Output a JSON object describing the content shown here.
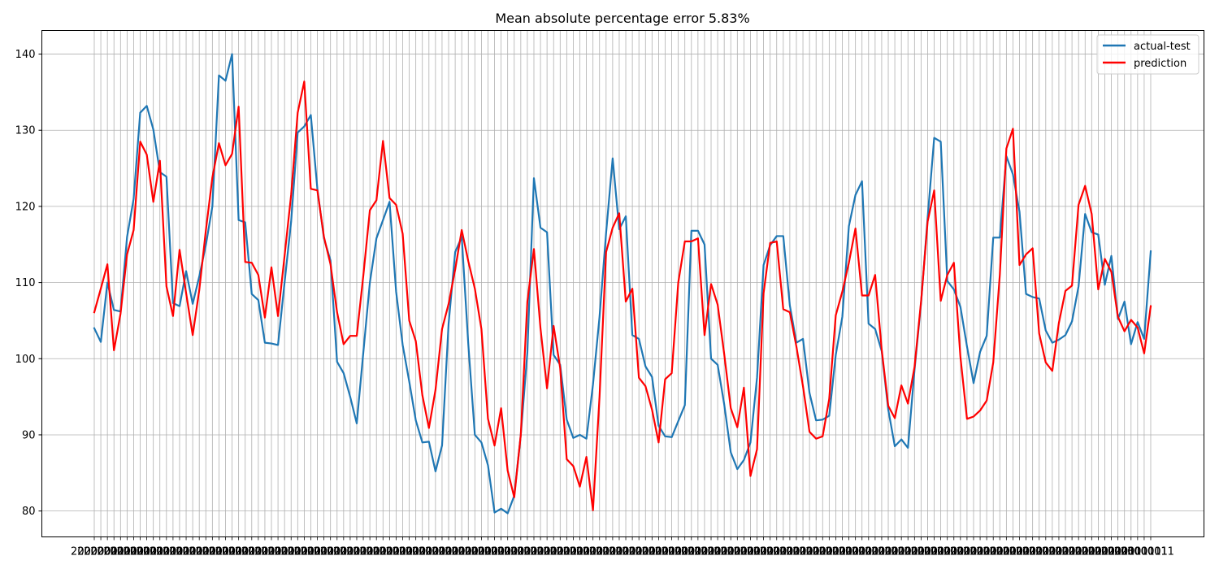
{
  "chart_data": {
    "type": "line",
    "title": "Mean absolute percentage error 5.83%",
    "xlabel": "",
    "ylabel": "",
    "ylim": [
      76.6,
      143.1
    ],
    "y_ticks": [
      80,
      90,
      100,
      110,
      120,
      130,
      140
    ],
    "x_tick_labels_note": "",
    "x_first_label": "2000001",
    "x_last_label": "3000011",
    "grid": true,
    "legend_position": "top-right",
    "series": [
      {
        "name": "actual-test",
        "color": "#1f77b4",
        "values": [
          104.0,
          102.2,
          110.0,
          106.4,
          106.2,
          116.0,
          121.0,
          132.3,
          133.2,
          130.1,
          124.5,
          123.9,
          107.3,
          106.9,
          111.5,
          107.2,
          110.8,
          114.9,
          120.0,
          137.2,
          136.5,
          140.0,
          118.2,
          117.9,
          108.5,
          107.7,
          102.1,
          102.0,
          101.8,
          110.0,
          118.0,
          129.7,
          130.5,
          132.0,
          122.3,
          115.8,
          112.9,
          99.6,
          98.1,
          95.0,
          91.5,
          100.8,
          110.0,
          115.8,
          118.2,
          120.6,
          108.8,
          101.8,
          97.0,
          91.9,
          89.0,
          89.1,
          85.2,
          88.6,
          104.6,
          114.0,
          116.0,
          101.9,
          90.0,
          89.0,
          86.0,
          79.8,
          80.3,
          79.7,
          82.0,
          90.0,
          100.8,
          123.7,
          117.2,
          116.6,
          100.5,
          99.2,
          92.0,
          89.6,
          90.0,
          89.5,
          96.6,
          105.5,
          116.5,
          126.3,
          117.0,
          118.7,
          103.1,
          102.6,
          99.0,
          97.6,
          91.2,
          89.8,
          89.7,
          91.8,
          93.9,
          116.8,
          116.8,
          115.0,
          100.0,
          99.2,
          94.0,
          87.7,
          85.5,
          86.7,
          89.0,
          97.5,
          112.3,
          114.9,
          116.1,
          116.1,
          107.0,
          102.1,
          102.6,
          95.5,
          91.9,
          92.0,
          92.5,
          100.5,
          105.5,
          117.4,
          121.5,
          123.3,
          104.6,
          103.9,
          101.0,
          93.3,
          88.5,
          89.4,
          88.3,
          98.5,
          107.3,
          118.5,
          129.0,
          128.5,
          110.2,
          109.1,
          106.8,
          101.6,
          96.8,
          100.9,
          103.0,
          115.9,
          115.9,
          126.6,
          124.2,
          119.3,
          108.5,
          108.1,
          107.9,
          103.7,
          102.1,
          102.5,
          103.1,
          104.9,
          109.5,
          119.0,
          116.6,
          116.3,
          109.7,
          113.5,
          105.2,
          107.5,
          101.9,
          104.8,
          102.6,
          114.1
        ]
      },
      {
        "name": "prediction",
        "color": "#ff0000",
        "values": [
          106.1,
          109.2,
          112.4,
          101.1,
          105.9,
          113.7,
          116.9,
          128.5,
          126.8,
          120.6,
          126.0,
          109.5,
          105.6,
          114.3,
          108.6,
          103.1,
          109.0,
          116.8,
          123.8,
          128.3,
          125.4,
          126.9,
          133.1,
          112.7,
          112.6,
          111.0,
          105.4,
          112.0,
          105.6,
          113.5,
          121.5,
          132.3,
          136.4,
          122.3,
          122.1,
          116.0,
          112.4,
          106.1,
          101.9,
          103.0,
          103.0,
          110.9,
          119.5,
          120.8,
          128.6,
          121.1,
          120.2,
          116.4,
          105.0,
          102.3,
          95.2,
          90.9,
          95.9,
          103.9,
          107.2,
          111.7,
          116.9,
          112.8,
          109.2,
          103.9,
          92.1,
          88.6,
          93.5,
          85.3,
          81.8,
          90.0,
          107.5,
          114.4,
          104.0,
          96.1,
          104.3,
          98.8,
          86.8,
          85.9,
          83.2,
          87.1,
          80.1,
          95.0,
          114.0,
          117.2,
          119.1,
          107.5,
          109.2,
          97.5,
          96.4,
          93.3,
          89.0,
          97.3,
          98.1,
          110.0,
          115.4,
          115.4,
          115.8,
          103.1,
          109.8,
          107.1,
          100.6,
          93.5,
          91.0,
          96.2,
          84.6,
          88.1,
          108.6,
          115.2,
          115.4,
          106.5,
          106.1,
          101.6,
          96.4,
          90.4,
          89.5,
          89.8,
          94.7,
          105.7,
          108.8,
          112.6,
          117.1,
          108.3,
          108.3,
          111.0,
          101.2,
          93.8,
          92.2,
          96.5,
          94.1,
          98.9,
          107.5,
          118.0,
          122.1,
          107.6,
          111.0,
          112.6,
          100.2,
          92.1,
          92.4,
          93.2,
          94.5,
          99.5,
          111.0,
          127.6,
          130.2,
          112.3,
          113.7,
          114.5,
          103.3,
          99.5,
          98.4,
          104.7,
          108.9,
          109.6,
          120.2,
          122.7,
          119.0,
          109.1,
          113.1,
          111.4,
          105.5,
          103.6,
          105.1,
          104.1,
          100.7,
          106.9
        ]
      }
    ]
  }
}
